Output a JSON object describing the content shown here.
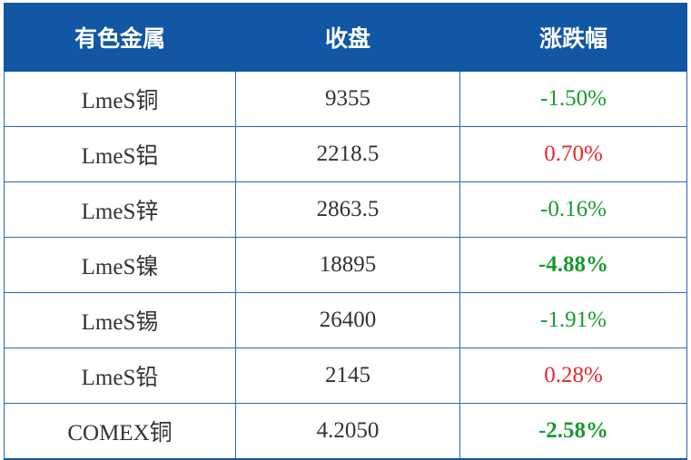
{
  "table": {
    "headers": [
      "有色金属",
      "收盘",
      "涨跌幅"
    ],
    "rows": [
      {
        "metal": "LmeS铜",
        "close": "9355",
        "change": "-1.50%",
        "direction": "down",
        "bold": false
      },
      {
        "metal": "LmeS铝",
        "close": "2218.5",
        "change": "0.70%",
        "direction": "up",
        "bold": false
      },
      {
        "metal": "LmeS锌",
        "close": "2863.5",
        "change": "-0.16%",
        "direction": "down",
        "bold": false
      },
      {
        "metal": "LmeS镍",
        "close": "18895",
        "change": "-4.88%",
        "direction": "down",
        "bold": true
      },
      {
        "metal": "LmeS锡",
        "close": "26400",
        "change": "-1.91%",
        "direction": "down",
        "bold": false
      },
      {
        "metal": "LmeS铅",
        "close": "2145",
        "change": "0.28%",
        "direction": "up",
        "bold": false
      },
      {
        "metal": "COMEX铜",
        "close": "4.2050",
        "change": "-2.58%",
        "direction": "down",
        "bold": true
      }
    ]
  },
  "colors": {
    "header_bg": "#1257a4",
    "header_text": "#ffffff",
    "down": "#1a9a2e",
    "up": "#e8262a"
  }
}
